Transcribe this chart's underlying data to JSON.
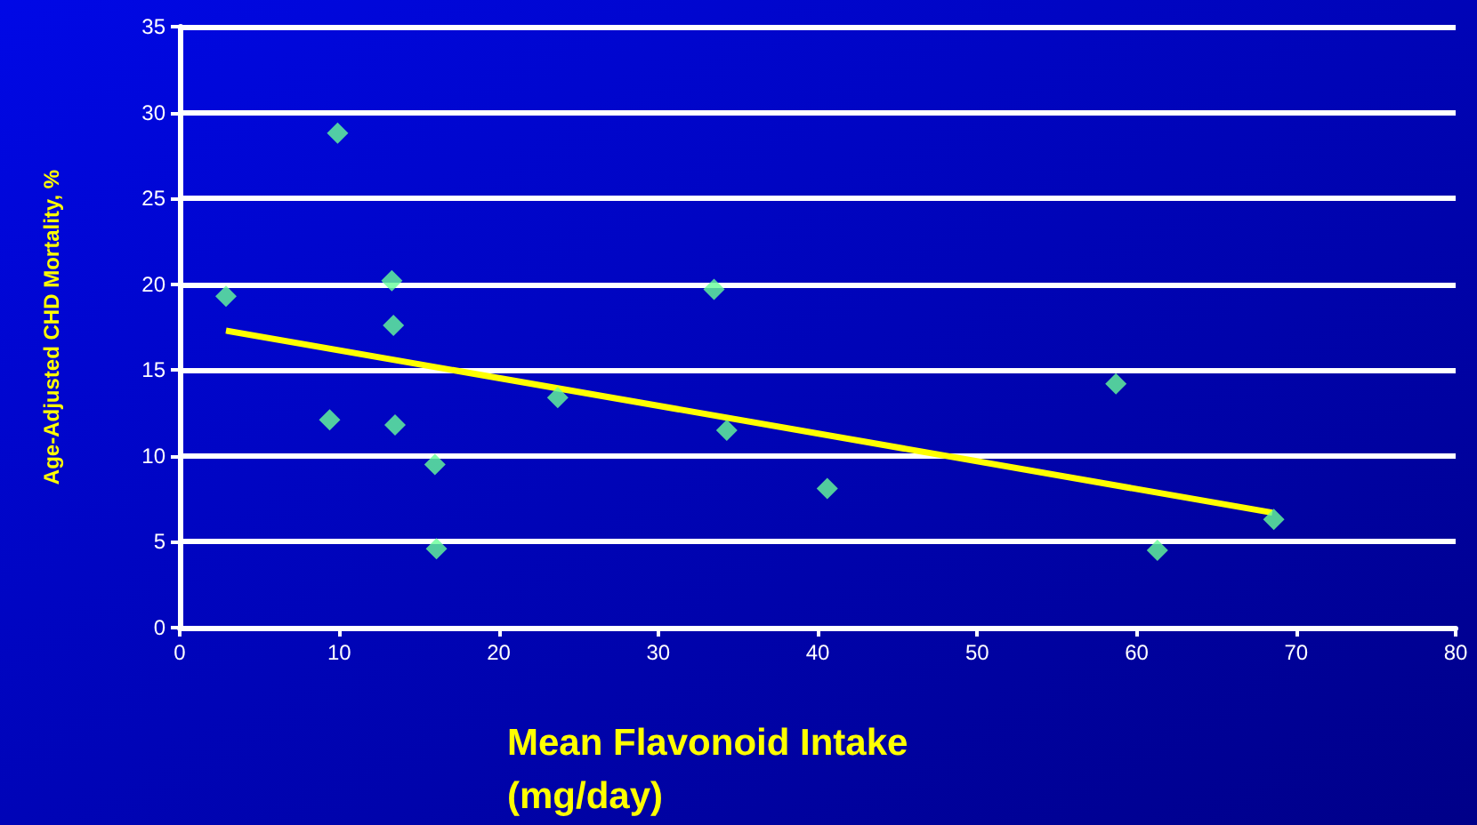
{
  "chart_data": {
    "type": "scatter",
    "xlabel": "Mean Flavonoid Intake\n(mg/day)",
    "ylabel": "Age-Adjusted CHD Mortality, %",
    "series": [
      {
        "color": "#66ff99",
        "marker": "diamond",
        "x": [
          2.9,
          9.9,
          9.4,
          13.3,
          13.4,
          13.5,
          16.0,
          16.1,
          23.7,
          33.5,
          34.3,
          40.6,
          58.7,
          61.3,
          68.6
        ],
        "values": [
          19.3,
          28.8,
          12.1,
          20.2,
          17.6,
          11.8,
          9.5,
          4.6,
          13.4,
          19.7,
          11.5,
          8.1,
          14.2,
          4.5,
          6.3
        ]
      },
      {
        "type": "line",
        "color": "#ffff00",
        "marker": "none",
        "x": [
          2.9,
          68.5
        ],
        "values": [
          17.3,
          6.7
        ]
      }
    ],
    "xlim": [
      0,
      80
    ],
    "xticks": [
      0,
      10,
      20,
      30,
      40,
      50,
      60,
      70,
      80
    ],
    "ylim": [
      0,
      35
    ],
    "yticks": [
      0,
      5,
      10,
      15,
      20,
      25,
      30,
      35
    ],
    "grid": "y"
  }
}
